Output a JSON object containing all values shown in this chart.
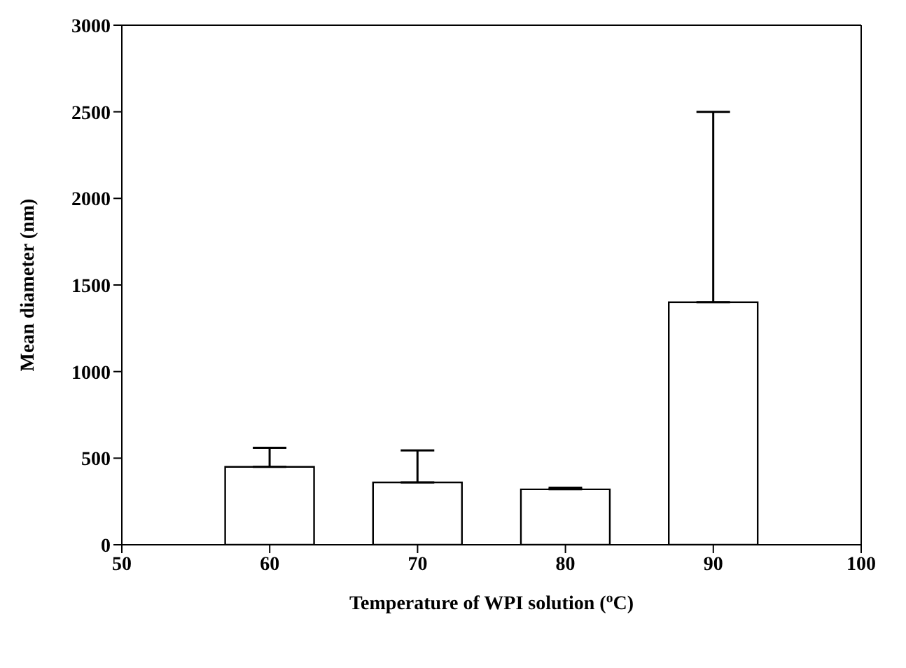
{
  "chart_data": {
    "type": "bar",
    "xlabel": "Temperature of WPI solution ($^{o}$C)",
    "ylabel": "Mean diameter (nm)",
    "x": [
      60,
      70,
      80,
      90
    ],
    "values": [
      450,
      360,
      320,
      1400
    ],
    "errors": [
      [
        450,
        560
      ],
      [
        360,
        545
      ],
      [
        320,
        330
      ],
      [
        1400,
        2500
      ]
    ],
    "color": "#ffffff",
    "xlim": [
      50,
      100
    ],
    "xticks": [
      50,
      60,
      70,
      80,
      90,
      100
    ],
    "ylim": [
      0,
      3000
    ],
    "yticks": [
      0,
      500,
      1000,
      1500,
      2000,
      2500,
      3000
    ],
    "grid": false,
    "legend": false
  }
}
